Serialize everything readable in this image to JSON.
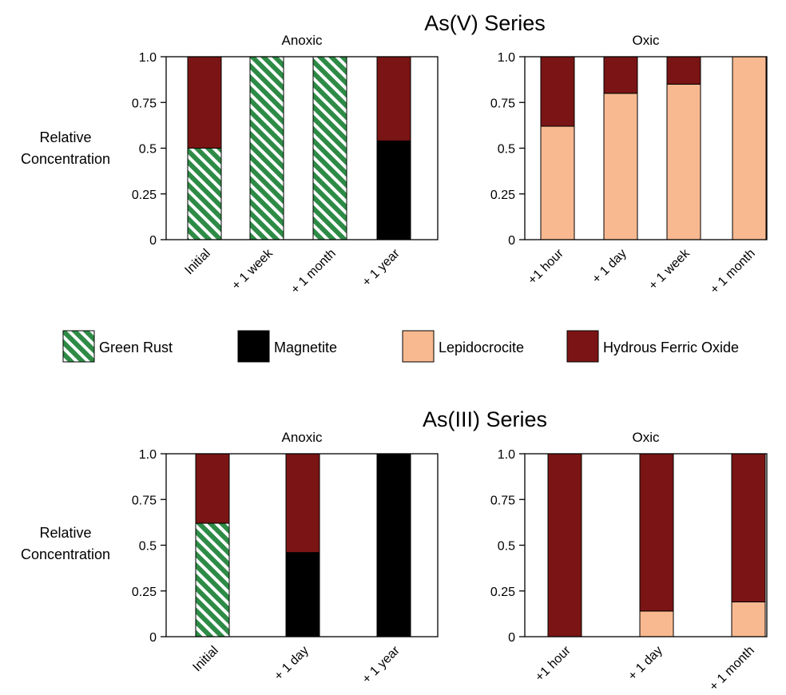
{
  "colors": {
    "green_rust": "#2e8b46",
    "magnetite": "#000000",
    "lepidocrocite": "#f9b990",
    "hydrous_ferric_oxide": "#7b1414"
  },
  "legend": [
    {
      "name": "Green Rust",
      "color_key": "green_rust",
      "pattern": "hatch"
    },
    {
      "name": "Magnetite",
      "color_key": "magnetite",
      "pattern": "solid"
    },
    {
      "name": "Lepidocrocite",
      "color_key": "lepidocrocite",
      "pattern": "solid"
    },
    {
      "name": "Hydrous Ferric Oxide",
      "color_key": "hydrous_ferric_oxide",
      "pattern": "solid"
    }
  ],
  "chart_data": [
    {
      "type": "bar",
      "stacked": true,
      "figure_title": "As(V) Series",
      "title": "Anoxic",
      "ylabel": "Relative Concentration",
      "ylim": [
        0,
        1
      ],
      "yticks": [
        "0",
        "0.25",
        "0.5",
        "0.75",
        "1.0"
      ],
      "categories": [
        "Initial",
        "+ 1 week",
        "+ 1 month",
        "+ 1 year"
      ],
      "series": [
        {
          "name": "Green Rust",
          "values": [
            0.5,
            1.0,
            1.0,
            0
          ]
        },
        {
          "name": "Magnetite",
          "values": [
            0,
            0,
            0,
            0.54
          ]
        },
        {
          "name": "Lepidocrocite",
          "values": [
            0,
            0,
            0,
            0
          ]
        },
        {
          "name": "Hydrous Ferric Oxide",
          "values": [
            0.5,
            0,
            0,
            0.46
          ]
        }
      ]
    },
    {
      "type": "bar",
      "stacked": true,
      "figure_title": "",
      "title": "Oxic",
      "ylabel": "",
      "ylim": [
        0,
        1
      ],
      "yticks": [
        "0",
        "0.25",
        "0.5",
        "0.75",
        "1.0"
      ],
      "categories": [
        "+1 hour",
        "+ 1 day",
        "+ 1 week",
        "+ 1 month"
      ],
      "series": [
        {
          "name": "Green Rust",
          "values": [
            0,
            0,
            0,
            0
          ]
        },
        {
          "name": "Magnetite",
          "values": [
            0,
            0,
            0,
            0
          ]
        },
        {
          "name": "Lepidocrocite",
          "values": [
            0.62,
            0.8,
            0.85,
            1.0
          ]
        },
        {
          "name": "Hydrous Ferric Oxide",
          "values": [
            0.38,
            0.2,
            0.15,
            0
          ]
        }
      ]
    },
    {
      "type": "bar",
      "stacked": true,
      "figure_title": "As(III) Series",
      "title": "Anoxic",
      "ylabel": "Relative Concentration",
      "ylim": [
        0,
        1
      ],
      "yticks": [
        "0",
        "0.25",
        "0.5",
        "0.75",
        "1.0"
      ],
      "categories": [
        "Initial",
        "+ 1 day",
        "+ 1 year"
      ],
      "series": [
        {
          "name": "Green Rust",
          "values": [
            0.62,
            0,
            0
          ]
        },
        {
          "name": "Magnetite",
          "values": [
            0,
            0.46,
            1.0
          ]
        },
        {
          "name": "Lepidocrocite",
          "values": [
            0,
            0,
            0
          ]
        },
        {
          "name": "Hydrous Ferric Oxide",
          "values": [
            0.38,
            0.54,
            0
          ]
        }
      ]
    },
    {
      "type": "bar",
      "stacked": true,
      "figure_title": "",
      "title": "Oxic",
      "ylabel": "",
      "ylim": [
        0,
        1
      ],
      "yticks": [
        "0",
        "0.25",
        "0.5",
        "0.75",
        "1.0"
      ],
      "categories": [
        "+1 hour",
        "+ 1 day",
        "+ 1 month"
      ],
      "series": [
        {
          "name": "Green Rust",
          "values": [
            0,
            0,
            0
          ]
        },
        {
          "name": "Magnetite",
          "values": [
            0,
            0,
            0
          ]
        },
        {
          "name": "Lepidocrocite",
          "values": [
            0,
            0.14,
            0.19
          ]
        },
        {
          "name": "Hydrous Ferric Oxide",
          "values": [
            1.0,
            0.86,
            0.81
          ]
        }
      ]
    }
  ]
}
